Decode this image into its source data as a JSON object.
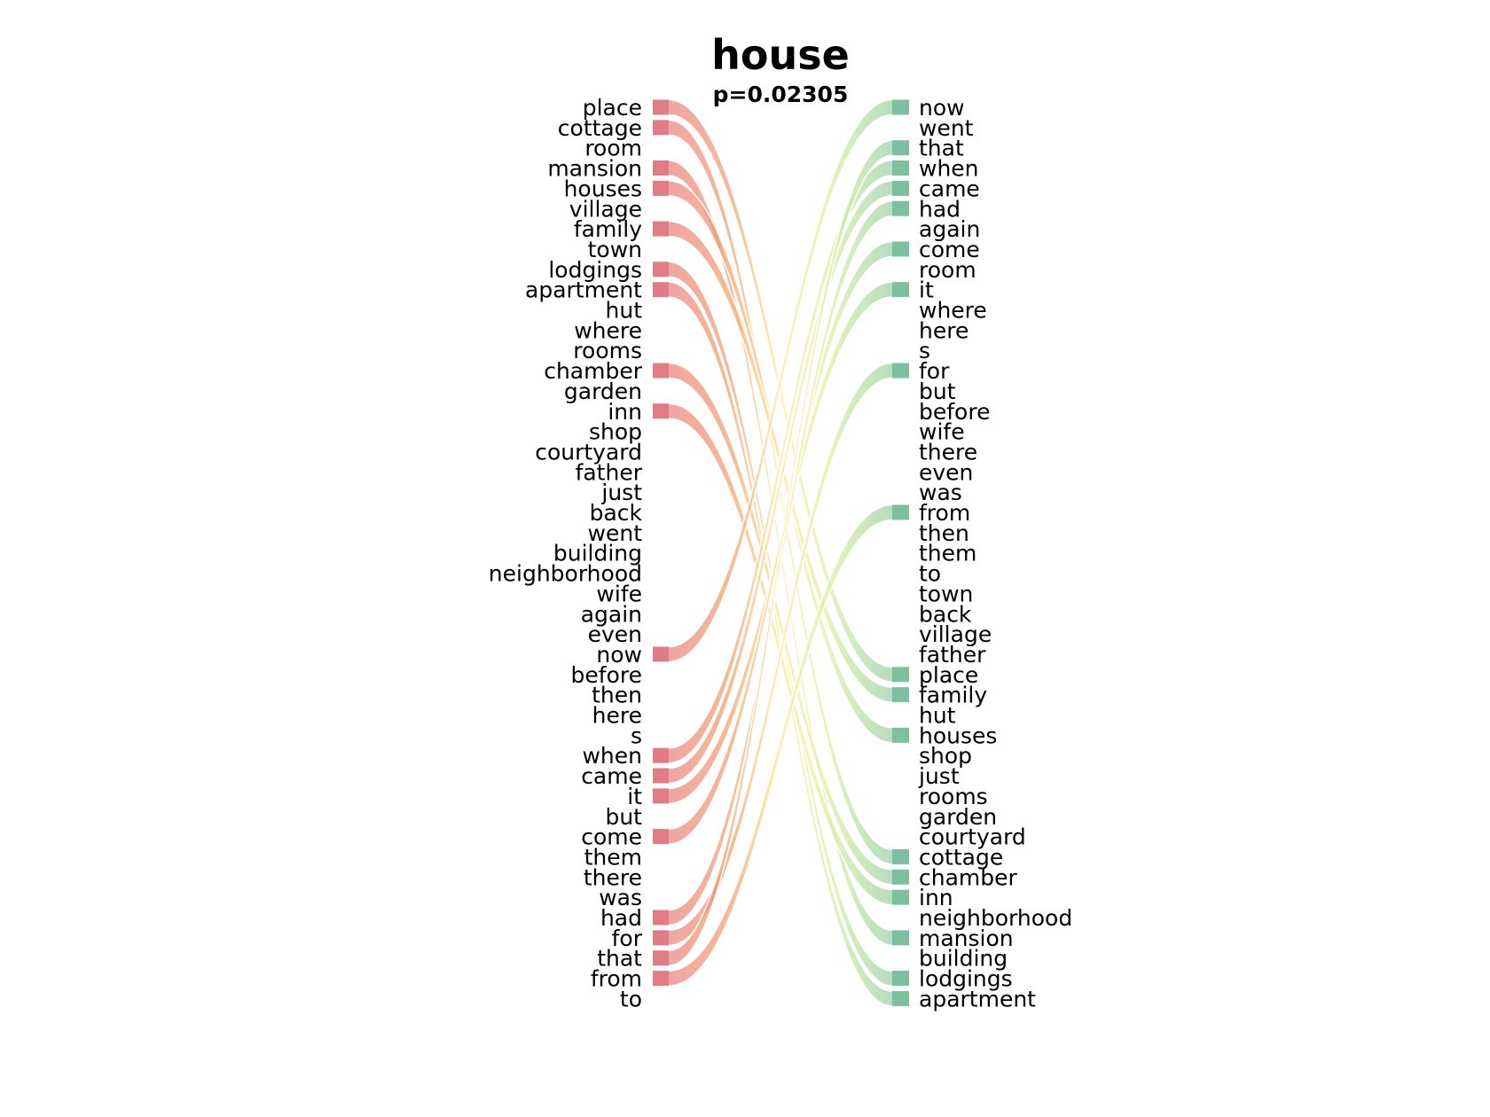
{
  "title": "house",
  "subtitle": "p=0.02305",
  "colors": {
    "left_start": "#e07c86",
    "right_end": "#7cc0a0",
    "gradient": [
      "#e87b83",
      "#f2a06a",
      "#ffe99a",
      "#d8f0a0",
      "#8ccaa6"
    ]
  },
  "left_words": [
    "place",
    "cottage",
    "room",
    "mansion",
    "houses",
    "village",
    "family",
    "town",
    "lodgings",
    "apartment",
    "hut",
    "where",
    "rooms",
    "chamber",
    "garden",
    "inn",
    "shop",
    "courtyard",
    "father",
    "just",
    "back",
    "went",
    "building",
    "neighborhood",
    "wife",
    "again",
    "even",
    "now",
    "before",
    "then",
    "here",
    "s",
    "when",
    "came",
    "it",
    "but",
    "come",
    "them",
    "there",
    "was",
    "had",
    "for",
    "that",
    "from",
    "to"
  ],
  "right_words": [
    "now",
    "went",
    "that",
    "when",
    "came",
    "had",
    "again",
    "come",
    "room",
    "it",
    "where",
    "here",
    "s",
    "for",
    "but",
    "before",
    "wife",
    "there",
    "even",
    "was",
    "from",
    "then",
    "them",
    "to",
    "town",
    "back",
    "village",
    "father",
    "place",
    "family",
    "hut",
    "houses",
    "shop",
    "just",
    "rooms",
    "garden",
    "courtyard",
    "cottage",
    "chamber",
    "inn",
    "neighborhood",
    "mansion",
    "building",
    "lodgings",
    "apartment"
  ],
  "links": [
    [
      "place",
      "place"
    ],
    [
      "cottage",
      "cottage"
    ],
    [
      "mansion",
      "mansion"
    ],
    [
      "houses",
      "houses"
    ],
    [
      "family",
      "family"
    ],
    [
      "lodgings",
      "lodgings"
    ],
    [
      "apartment",
      "apartment"
    ],
    [
      "chamber",
      "chamber"
    ],
    [
      "inn",
      "inn"
    ],
    [
      "now",
      "now"
    ],
    [
      "when",
      "when"
    ],
    [
      "came",
      "came"
    ],
    [
      "it",
      "it"
    ],
    [
      "come",
      "come"
    ],
    [
      "had",
      "had"
    ],
    [
      "for",
      "for"
    ],
    [
      "that",
      "that"
    ],
    [
      "from",
      "from"
    ]
  ]
}
